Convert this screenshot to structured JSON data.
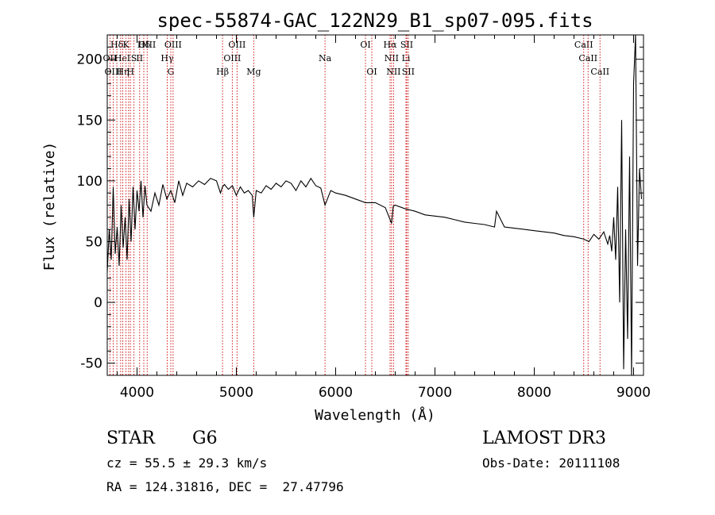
{
  "chart_data": {
    "type": "line",
    "title": "spec-55874-GAC_122N29_B1_sp07-095.fits",
    "xlabel": "Wavelength (Å)",
    "ylabel": "Flux (relative)",
    "xlim": [
      3700,
      9100
    ],
    "ylim": [
      -60,
      220
    ],
    "xticks": [
      4000,
      5000,
      6000,
      7000,
      8000,
      9000
    ],
    "yticks": [
      -50,
      0,
      50,
      100,
      150,
      200
    ],
    "series": [
      {
        "name": "spectrum",
        "x": [
          3700,
          3720,
          3740,
          3760,
          3780,
          3800,
          3820,
          3840,
          3860,
          3880,
          3900,
          3920,
          3940,
          3960,
          3980,
          4000,
          4020,
          4040,
          4060,
          4080,
          4100,
          4140,
          4180,
          4220,
          4260,
          4300,
          4340,
          4380,
          4420,
          4460,
          4500,
          4560,
          4620,
          4680,
          4740,
          4800,
          4840,
          4860,
          4880,
          4920,
          4960,
          5000,
          5040,
          5080,
          5120,
          5160,
          5175,
          5200,
          5250,
          5300,
          5350,
          5400,
          5450,
          5500,
          5550,
          5600,
          5650,
          5700,
          5750,
          5800,
          5850,
          5893,
          5950,
          6000,
          6100,
          6200,
          6300,
          6400,
          6500,
          6563,
          6580,
          6600,
          6700,
          6800,
          6900,
          7000,
          7100,
          7200,
          7300,
          7400,
          7500,
          7600,
          7620,
          7700,
          7800,
          7900,
          8000,
          8100,
          8200,
          8300,
          8400,
          8500,
          8550,
          8600,
          8650,
          8700,
          8740,
          8760,
          8780,
          8800,
          8820,
          8840,
          8860,
          8880,
          8900,
          8920,
          8940,
          8960,
          8980,
          9000,
          9020,
          9040,
          9060,
          9080
        ],
        "values": [
          25,
          60,
          35,
          95,
          40,
          62,
          30,
          80,
          45,
          70,
          35,
          85,
          50,
          95,
          60,
          92,
          75,
          100,
          70,
          96,
          80,
          75,
          90,
          80,
          97,
          85,
          92,
          82,
          100,
          88,
          98,
          95,
          100,
          97,
          102,
          100,
          90,
          95,
          97,
          93,
          96,
          88,
          95,
          90,
          92,
          88,
          70,
          92,
          90,
          96,
          93,
          98,
          95,
          100,
          98,
          92,
          100,
          95,
          102,
          96,
          94,
          80,
          92,
          90,
          88,
          85,
          82,
          82,
          78,
          65,
          79,
          80,
          77,
          75,
          72,
          71,
          70,
          68,
          66,
          65,
          64,
          62,
          75,
          62,
          61,
          60,
          59,
          58,
          57,
          55,
          54,
          52,
          50,
          56,
          52,
          58,
          48,
          55,
          42,
          70,
          35,
          95,
          0,
          150,
          -55,
          60,
          -30,
          120,
          -60,
          180,
          220,
          30,
          110,
          85
        ],
        "color": "#000000"
      }
    ],
    "lines": [
      {
        "label": "Hδ",
        "x": 3797,
        "row": 0
      },
      {
        "label": "OII",
        "x": 3727,
        "row": 1
      },
      {
        "label": "OIII",
        "x": 3760,
        "row": 2
      },
      {
        "label": "He",
        "x": 3835,
        "row": 1
      },
      {
        "label": "Hη",
        "x": 3856,
        "row": 2
      },
      {
        "label": "K",
        "x": 3889,
        "row": 0
      },
      {
        "label": "I",
        "x": 3915,
        "row": 1
      },
      {
        "label": "H",
        "x": 3933,
        "row": 2
      },
      {
        "label": "S",
        "x": 3969,
        "row": 1
      },
      {
        "label": "II",
        "x": 4026,
        "row": 1
      },
      {
        "label": "Hδ",
        "x": 4068,
        "row": 0
      },
      {
        "label": "OIII",
        "x": 4102,
        "row": 0
      },
      {
        "label": "Hγ",
        "x": 4304,
        "row": 1
      },
      {
        "label": "G",
        "x": 4340,
        "row": 2
      },
      {
        "label": "OIII",
        "x": 4363,
        "row": 0
      },
      {
        "label": "Hβ",
        "x": 4861,
        "row": 2
      },
      {
        "label": "OIII",
        "x": 4959,
        "row": 1
      },
      {
        "label": "OIII",
        "x": 5007,
        "row": 0
      },
      {
        "label": "Mg",
        "x": 5175,
        "row": 2
      },
      {
        "label": "Na",
        "x": 5893,
        "row": 1
      },
      {
        "label": "OI",
        "x": 6300,
        "row": 0
      },
      {
        "label": "OI",
        "x": 6364,
        "row": 2
      },
      {
        "label": "Hα",
        "x": 6548,
        "row": 0
      },
      {
        "label": "NII",
        "x": 6563,
        "row": 1
      },
      {
        "label": "NII",
        "x": 6583,
        "row": 2
      },
      {
        "label": "SII",
        "x": 6716,
        "row": 0
      },
      {
        "label": "Li",
        "x": 6708,
        "row": 1
      },
      {
        "label": "SII",
        "x": 6731,
        "row": 2
      },
      {
        "label": "CaII",
        "x": 8498,
        "row": 0
      },
      {
        "label": "CaII",
        "x": 8542,
        "row": 1
      },
      {
        "label": "CaII",
        "x": 8662,
        "row": 2
      }
    ]
  },
  "info": {
    "class": "STAR",
    "subclass": "G6",
    "survey": "LAMOST DR3",
    "cz": "cz = 55.5 ± 29.3 km/s",
    "obsdate": "Obs-Date: 20111108",
    "radec": "RA = 124.31816, DEC =  27.47796"
  }
}
